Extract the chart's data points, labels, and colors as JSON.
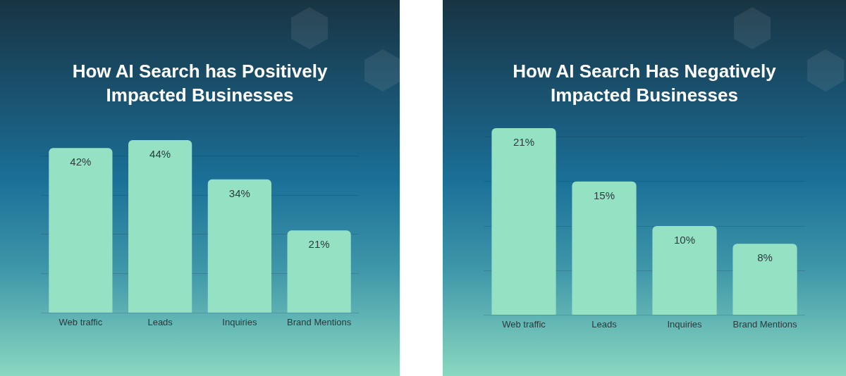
{
  "chart_data": [
    {
      "type": "bar",
      "title": "How AI Search has Positively Impacted Businesses",
      "categories": [
        "Web traffic",
        "Leads",
        "Inquiries",
        "Brand Mentions"
      ],
      "values": [
        42,
        44,
        34,
        21
      ],
      "value_labels": [
        "42%",
        "44%",
        "34%",
        "21%"
      ],
      "color": "#95e1c3",
      "ylim": [
        0,
        44
      ],
      "yticks": [
        {
          "value": 0,
          "label": null
        },
        {
          "value": 10,
          "label": null
        },
        {
          "value": 20,
          "label": null
        },
        {
          "value": 30,
          "label": null
        },
        {
          "value": 40,
          "label": null
        }
      ],
      "grid": "y",
      "tick_labels": "x"
    },
    {
      "type": "bar",
      "title": "How AI Search Has Negatively Impacted Businesses",
      "categories": [
        "Web traffic",
        "Leads",
        "Inquiries",
        "Brand Mentions"
      ],
      "values": [
        21,
        15,
        10,
        8
      ],
      "value_labels": [
        "21%",
        "15%",
        "10%",
        "8%"
      ],
      "color": "#95e1c3",
      "ylim": [
        0,
        21
      ],
      "yticks": [
        {
          "value": 0,
          "label": null
        },
        {
          "value": 5,
          "label": null
        },
        {
          "value": 10,
          "label": null
        },
        {
          "value": 15,
          "label": null
        },
        {
          "value": 20,
          "label": null
        }
      ],
      "grid": "y",
      "tick_labels": "x"
    }
  ]
}
